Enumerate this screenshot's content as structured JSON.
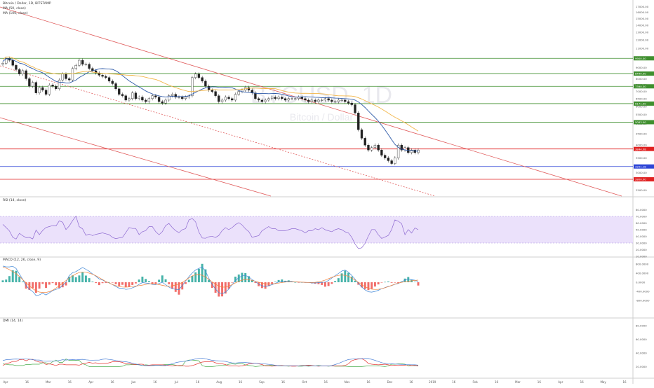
{
  "header": {
    "title": "Bitcoin / Dollar, 1D, BITSTAMP",
    "ma1": "MA (50, close)",
    "ma2": "MA (100, close)"
  },
  "watermark": {
    "line1": "BTCUSD, 1D",
    "line2": "Bitcoin / Dollar"
  },
  "panes": {
    "rsi": {
      "title": "RSI (14, close)"
    },
    "macd": {
      "title": "MACD (12, 26, close, 9)"
    },
    "dmi": {
      "title": "DMI (14, 14)"
    }
  },
  "colors": {
    "up": "#26a69a",
    "down": "#ef5350",
    "ma50": "#2e5aa8",
    "ma100": "#f2b64a",
    "channel": "#e05b5b",
    "support_green": "#3f8f2e",
    "support_blue": "#2d45d6",
    "support_red": "#e02020",
    "rsi_band": "#ebe1fb",
    "rsi_line": "#8e6ad1",
    "macd_line": "#3f87d6",
    "signal_line": "#f3823a",
    "dmi_plus": "#4caf50",
    "dmi_minus": "#e53935",
    "adx": "#4a7fd6"
  },
  "chart_data": [
    {
      "type": "candlestick",
      "title": "Bitcoin / Dollar, 1D, BITSTAMP",
      "series": [
        {
          "name": "MA (50, close)"
        },
        {
          "name": "MA (100, close)"
        }
      ],
      "x_ticks": [
        "Apr",
        "16",
        "Mar",
        "16",
        "Apr",
        "16",
        "Jun",
        "16",
        "Jul",
        "16",
        "Aug",
        "16",
        "Sep",
        "16",
        "Oct",
        "16",
        "Nov",
        "16",
        "Dec",
        "16",
        "2019",
        "16",
        "Feb",
        "16",
        "Mar",
        "16",
        "Apr",
        "16",
        "May",
        "16"
      ],
      "y_ticks": [
        "17000.00",
        "16000.00",
        "15000.00",
        "14000.00",
        "13000.00",
        "12000.00",
        "11000.00",
        "10000.00",
        "9000.00",
        "8500.00",
        "8000.00",
        "7500.00",
        "7000.00",
        "6500.00",
        "6000.00",
        "5500.00",
        "5000.00",
        "4500.00",
        "4000.00",
        "3500.00",
        "3000.00",
        "2500.00"
      ],
      "price_labels": [
        {
          "value": "9900.00",
          "kind": "green"
        },
        {
          "value": "8440.00",
          "kind": "green"
        },
        {
          "value": "7390.00",
          "kind": "green"
        },
        {
          "value": "6171.00",
          "kind": "green"
        },
        {
          "value": "5083.00",
          "kind": "green"
        },
        {
          "value": "3844.08",
          "kind": "red"
        },
        {
          "value": "3201.18",
          "kind": "blue"
        },
        {
          "value": "2800.00",
          "kind": "red"
        }
      ],
      "closes": [
        9400,
        9900,
        9700,
        9200,
        8800,
        8400,
        8700,
        8000,
        7400,
        7700,
        6900,
        7300,
        7100,
        6800,
        7500,
        7400,
        7200,
        7900,
        8400,
        8000,
        7900,
        8900,
        9200,
        9700,
        9300,
        9300,
        8900,
        8700,
        8500,
        8300,
        8200,
        8100,
        7800,
        7600,
        7200,
        6800,
        6700,
        6400,
        6500,
        6900,
        6500,
        6600,
        6400,
        6300,
        6500,
        6700,
        6600,
        6300,
        6200,
        6400,
        6700,
        6800,
        6600,
        6600,
        6500,
        6600,
        6700,
        8100,
        8400,
        8100,
        7800,
        7400,
        7100,
        7000,
        6700,
        6300,
        6400,
        6600,
        6500,
        6400,
        6800,
        7000,
        7100,
        7300,
        7100,
        6900,
        6500,
        6400,
        6300,
        6400,
        6500,
        6600,
        6500,
        6600,
        6500,
        6400,
        6500,
        6500,
        6500,
        6600,
        6500,
        6400,
        6300,
        6400,
        6300,
        6400,
        6400,
        6500,
        6400,
        6300,
        6300,
        6400,
        6400,
        6300,
        6200,
        6100,
        5600,
        4700,
        4300,
        4000,
        3800,
        3900,
        4000,
        3800,
        3600,
        3500,
        3400,
        3300,
        3500,
        4000,
        3800,
        3900,
        3700,
        3800,
        3700,
        3800
      ]
    },
    {
      "type": "line",
      "title": "RSI (14, close)",
      "y_ticks": [
        "80.0000",
        "70.0000",
        "60.0000",
        "50.0000",
        "40.0000",
        "30.0000",
        "20.0000",
        "10.0000"
      ],
      "band": [
        30,
        70
      ]
    },
    {
      "type": "bar",
      "title": "MACD (12, 26, close, 9)",
      "y_ticks": [
        "800.0000",
        "400.0000",
        "0.0000",
        "-400.0000",
        "-800.0000"
      ]
    },
    {
      "type": "line",
      "title": "DMI (14, 14)",
      "y_ticks": [
        "80.0000",
        "60.0000",
        "40.0000",
        "20.0000"
      ]
    }
  ]
}
